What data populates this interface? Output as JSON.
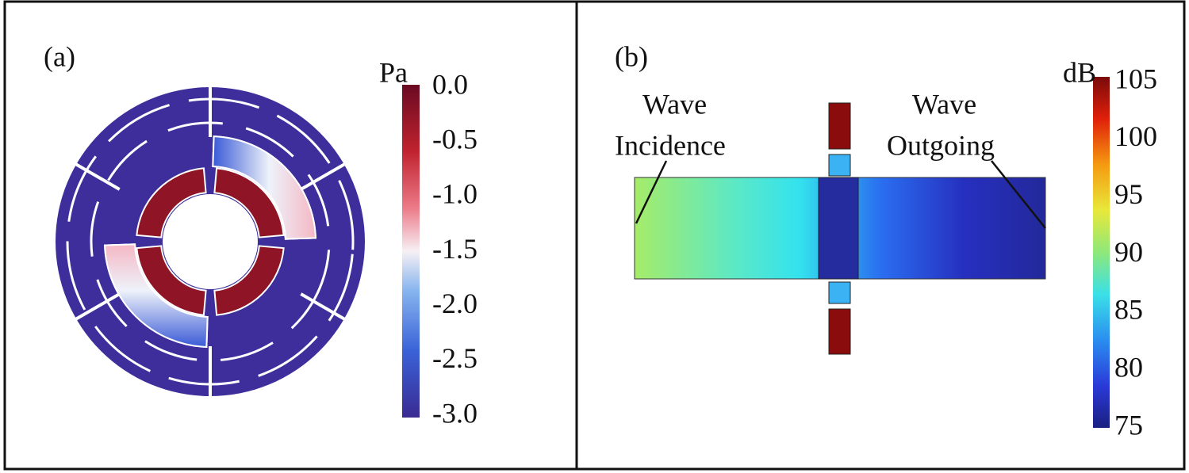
{
  "panels": [
    {
      "label": "(a)",
      "colorbar": {
        "unit": "Pa",
        "ticks": [
          "0.0",
          "-0.5",
          "-1.0",
          "-1.5",
          "-2.0",
          "-2.5",
          "-3.0"
        ]
      }
    },
    {
      "label": "(b)",
      "colorbar": {
        "unit": "dB",
        "ticks": [
          "105",
          "100",
          "95",
          "90",
          "85",
          "80",
          "75"
        ]
      },
      "annotations": [
        {
          "lines": [
            "Wave",
            "Incidence"
          ]
        },
        {
          "lines": [
            "Wave",
            "Outgoing"
          ]
        }
      ]
    }
  ]
}
